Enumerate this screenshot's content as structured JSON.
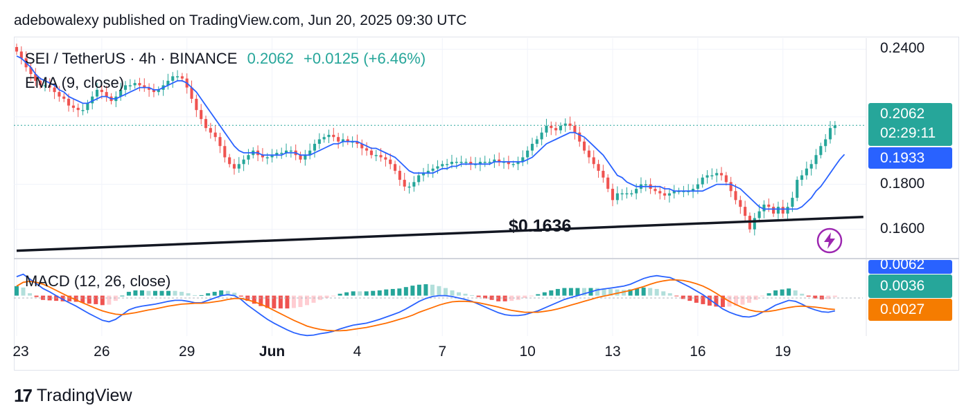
{
  "header": {
    "byline": "adebowalexy published on TradingView.com, Jun 20, 2025 09:30 UTC"
  },
  "legend": {
    "symbol": "SEI / TetherUS · 4h · BINANCE",
    "price": "0.2062",
    "change": "+0.0125 (+6.46%)",
    "ema_label": "EMA (9, close)",
    "macd_label": "MACD (12, 26, close)"
  },
  "price_tags": {
    "last_price": "0.2062",
    "countdown": "02:29:11",
    "ema_value": "0.1933",
    "macd_value": "0.0062",
    "signal_hist": "0.0036",
    "signal_value": "0.0027"
  },
  "annotation": {
    "support_label": "$0.1636"
  },
  "footer": {
    "brand": "TradingView"
  },
  "colors": {
    "up": "#26a69a",
    "down": "#ef5350",
    "ema": "#2962ff",
    "macd": "#2962ff",
    "signal": "#ff6d00",
    "tag_green": "#26a69a",
    "tag_blue": "#2962ff",
    "tag_orange": "#f57c00",
    "bolt": "#9c27b0"
  },
  "chart_data": {
    "type": "candlestick",
    "title": "SEI / TetherUS · 4h · BINANCE",
    "y_ticks": [
      "0.2400",
      "0.1800",
      "0.1600"
    ],
    "y_tick_values": [
      0.24,
      0.18,
      0.16
    ],
    "ylim": [
      0.147,
      0.245
    ],
    "x_ticks": [
      "23",
      "26",
      "29",
      "Jun",
      "4",
      "7",
      "10",
      "13",
      "16",
      "19"
    ],
    "x_tick_index": [
      0,
      18,
      36,
      54,
      72,
      90,
      108,
      126,
      144,
      162
    ],
    "x_range": [
      0,
      172
    ],
    "last_price": 0.2062,
    "ema_last": 0.1933,
    "support_line": {
      "label": "$0.1636",
      "start": [
        0,
        0.1505
      ],
      "end": [
        179,
        0.1655
      ]
    },
    "close": [
      0.239,
      0.236,
      0.232,
      0.229,
      0.226,
      0.224,
      0.224,
      0.223,
      0.221,
      0.219,
      0.218,
      0.215,
      0.214,
      0.213,
      0.213,
      0.216,
      0.219,
      0.222,
      0.221,
      0.219,
      0.217,
      0.219,
      0.222,
      0.224,
      0.224,
      0.225,
      0.224,
      0.223,
      0.222,
      0.221,
      0.222,
      0.224,
      0.226,
      0.228,
      0.228,
      0.227,
      0.223,
      0.218,
      0.213,
      0.209,
      0.205,
      0.203,
      0.201,
      0.197,
      0.192,
      0.189,
      0.187,
      0.189,
      0.191,
      0.193,
      0.195,
      0.193,
      0.192,
      0.192,
      0.193,
      0.194,
      0.194,
      0.195,
      0.195,
      0.193,
      0.191,
      0.193,
      0.195,
      0.198,
      0.2,
      0.201,
      0.202,
      0.201,
      0.199,
      0.2,
      0.199,
      0.199,
      0.198,
      0.196,
      0.195,
      0.193,
      0.193,
      0.192,
      0.191,
      0.189,
      0.186,
      0.182,
      0.179,
      0.179,
      0.181,
      0.184,
      0.185,
      0.186,
      0.187,
      0.188,
      0.189,
      0.189,
      0.19,
      0.19,
      0.19,
      0.19,
      0.189,
      0.189,
      0.19,
      0.19,
      0.19,
      0.191,
      0.19,
      0.19,
      0.189,
      0.189,
      0.19,
      0.192,
      0.195,
      0.198,
      0.2,
      0.203,
      0.206,
      0.205,
      0.204,
      0.206,
      0.207,
      0.206,
      0.203,
      0.199,
      0.195,
      0.192,
      0.189,
      0.186,
      0.183,
      0.178,
      0.173,
      0.176,
      0.176,
      0.176,
      0.176,
      0.178,
      0.18,
      0.18,
      0.178,
      0.177,
      0.176,
      0.175,
      0.176,
      0.177,
      0.177,
      0.177,
      0.177,
      0.178,
      0.18,
      0.183,
      0.184,
      0.184,
      0.185,
      0.184,
      0.181,
      0.177,
      0.173,
      0.17,
      0.166,
      0.16,
      0.165,
      0.168,
      0.171,
      0.17,
      0.167,
      0.17,
      0.167,
      0.17,
      0.174,
      0.182,
      0.184,
      0.187,
      0.189,
      0.193,
      0.197,
      0.2,
      0.205,
      0.2062
    ],
    "ema": [
      0.237,
      0.236,
      0.234,
      0.232,
      0.229,
      0.227,
      0.226,
      0.225,
      0.224,
      0.222,
      0.221,
      0.219,
      0.218,
      0.217,
      0.216,
      0.216,
      0.217,
      0.218,
      0.219,
      0.219,
      0.218,
      0.218,
      0.219,
      0.22,
      0.221,
      0.222,
      0.223,
      0.223,
      0.223,
      0.222,
      0.222,
      0.223,
      0.224,
      0.225,
      0.226,
      0.226,
      0.225,
      0.223,
      0.221,
      0.218,
      0.215,
      0.212,
      0.209,
      0.206,
      0.203,
      0.2,
      0.197,
      0.195,
      0.194,
      0.194,
      0.194,
      0.194,
      0.193,
      0.193,
      0.193,
      0.193,
      0.193,
      0.194,
      0.194,
      0.194,
      0.193,
      0.193,
      0.193,
      0.194,
      0.195,
      0.196,
      0.197,
      0.198,
      0.198,
      0.199,
      0.199,
      0.199,
      0.199,
      0.198,
      0.197,
      0.196,
      0.196,
      0.195,
      0.194,
      0.193,
      0.192,
      0.19,
      0.188,
      0.186,
      0.185,
      0.185,
      0.185,
      0.185,
      0.185,
      0.186,
      0.187,
      0.187,
      0.188,
      0.188,
      0.189,
      0.189,
      0.189,
      0.189,
      0.189,
      0.189,
      0.189,
      0.19,
      0.19,
      0.19,
      0.19,
      0.19,
      0.19,
      0.19,
      0.191,
      0.192,
      0.194,
      0.196,
      0.198,
      0.199,
      0.2,
      0.201,
      0.202,
      0.203,
      0.203,
      0.202,
      0.201,
      0.199,
      0.197,
      0.195,
      0.193,
      0.19,
      0.187,
      0.184,
      0.183,
      0.181,
      0.18,
      0.179,
      0.179,
      0.179,
      0.179,
      0.179,
      0.179,
      0.178,
      0.178,
      0.177,
      0.177,
      0.177,
      0.177,
      0.177,
      0.177,
      0.177,
      0.178,
      0.179,
      0.18,
      0.18,
      0.18,
      0.18,
      0.179,
      0.178,
      0.176,
      0.174,
      0.172,
      0.17,
      0.169,
      0.169,
      0.169,
      0.169,
      0.169,
      0.169,
      0.169,
      0.169,
      0.17,
      0.172,
      0.174,
      0.177,
      0.179,
      0.182,
      0.185,
      0.188,
      0.191,
      0.1933
    ],
    "macd_panel": {
      "label": "MACD (12, 26, close)",
      "ylim": [
        -0.0085,
        0.0075
      ],
      "macd": [
        0.004,
        0.0045,
        0.0035,
        0.0025,
        0.0015,
        0.0008,
        0.0,
        -0.0008,
        -0.0015,
        -0.0022,
        -0.003,
        -0.0038,
        -0.0045,
        -0.0052,
        -0.0055,
        -0.005,
        -0.004,
        -0.003,
        -0.0025,
        -0.0022,
        -0.002,
        -0.0018,
        -0.0015,
        -0.0012,
        -0.001,
        -0.001,
        -0.0012,
        -0.0015,
        -0.0015,
        -0.001,
        -0.0005,
        0.0,
        0.0002,
        0.0,
        -0.0008,
        -0.002,
        -0.003,
        -0.004,
        -0.005,
        -0.0058,
        -0.0065,
        -0.0072,
        -0.0078,
        -0.0082,
        -0.0084,
        -0.0083,
        -0.008,
        -0.0078,
        -0.0075,
        -0.007,
        -0.0066,
        -0.0062,
        -0.006,
        -0.0058,
        -0.0054,
        -0.005,
        -0.0045,
        -0.004,
        -0.0035,
        -0.0028,
        -0.002,
        -0.0012,
        -0.0006,
        -0.0002,
        0.0,
        0.0,
        -0.0002,
        -0.0005,
        -0.0008,
        -0.0012,
        -0.0018,
        -0.0024,
        -0.003,
        -0.0036,
        -0.004,
        -0.0042,
        -0.0042,
        -0.004,
        -0.0036,
        -0.0032,
        -0.0026,
        -0.002,
        -0.0014,
        -0.0008,
        -0.0004,
        0.0,
        0.0004,
        0.0008,
        0.0012,
        0.0014,
        0.0016,
        0.0018,
        0.002,
        0.0024,
        0.003,
        0.0036,
        0.004,
        0.0042,
        0.004,
        0.0038,
        0.0032,
        0.0025,
        0.0018,
        0.001,
        0.0002,
        -0.0008,
        -0.0018,
        -0.0028,
        -0.0035,
        -0.004,
        -0.0044,
        -0.0045,
        -0.0042,
        -0.0035,
        -0.0028,
        -0.002,
        -0.0015,
        -0.001,
        -0.0012,
        -0.0018,
        -0.0025,
        -0.003,
        -0.0034,
        -0.0035,
        -0.0032
      ],
      "signal": [
        0.002,
        0.0028,
        0.003,
        0.0028,
        0.0024,
        0.0018,
        0.0011,
        0.0004,
        -0.0003,
        -0.0009,
        -0.0015,
        -0.0021,
        -0.0027,
        -0.0032,
        -0.0036,
        -0.0039,
        -0.004,
        -0.0038,
        -0.0036,
        -0.0033,
        -0.003,
        -0.0028,
        -0.0025,
        -0.0022,
        -0.002,
        -0.0018,
        -0.0017,
        -0.0016,
        -0.0016,
        -0.0015,
        -0.0013,
        -0.0011,
        -0.0008,
        -0.0006,
        -0.0006,
        -0.0009,
        -0.0013,
        -0.0018,
        -0.0024,
        -0.0031,
        -0.0038,
        -0.0045,
        -0.0052,
        -0.0058,
        -0.0064,
        -0.0068,
        -0.0071,
        -0.0073,
        -0.0074,
        -0.0074,
        -0.0073,
        -0.0071,
        -0.0069,
        -0.0067,
        -0.0064,
        -0.0061,
        -0.0058,
        -0.0054,
        -0.005,
        -0.0046,
        -0.0041,
        -0.0035,
        -0.003,
        -0.0025,
        -0.002,
        -0.0016,
        -0.0013,
        -0.0012,
        -0.0012,
        -0.0013,
        -0.0015,
        -0.0018,
        -0.0021,
        -0.0024,
        -0.0028,
        -0.0031,
        -0.0033,
        -0.0035,
        -0.0035,
        -0.0035,
        -0.0033,
        -0.0031,
        -0.0028,
        -0.0024,
        -0.002,
        -0.0016,
        -0.0012,
        -0.0008,
        -0.0004,
        -0.0001,
        0.0002,
        0.0005,
        0.0008,
        0.0011,
        0.0015,
        0.0019,
        0.0024,
        0.0028,
        0.0031,
        0.0033,
        0.0033,
        0.0032,
        0.0029,
        0.0025,
        0.002,
        0.0013,
        0.0005,
        -0.0004,
        -0.0012,
        -0.0019,
        -0.0025,
        -0.003,
        -0.0033,
        -0.0034,
        -0.0033,
        -0.0031,
        -0.0028,
        -0.0025,
        -0.0023,
        -0.0022,
        -0.0023,
        -0.0024,
        -0.0026,
        -0.0028,
        -0.0029
      ]
    }
  }
}
